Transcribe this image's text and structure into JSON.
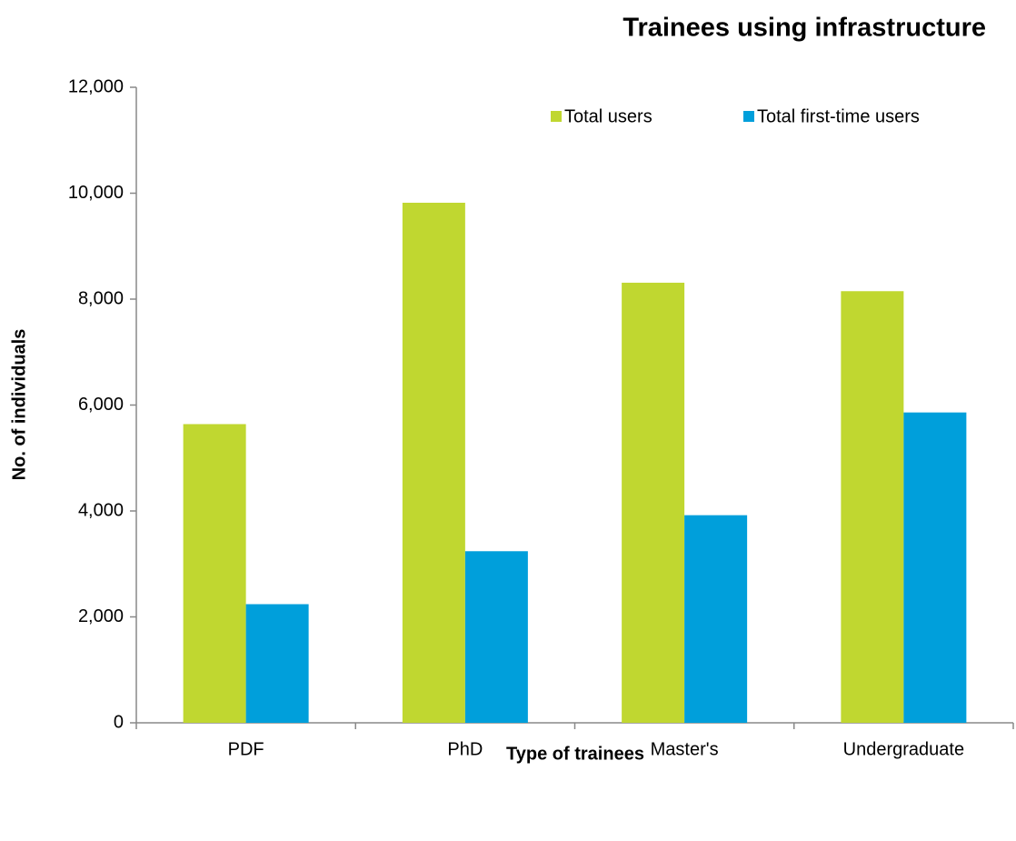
{
  "chart_data": {
    "type": "bar",
    "title": "Trainees using infrastructure",
    "x_label": "Type of trainees",
    "y_label": "No. of individuals",
    "categories": [
      "PDF",
      "PhD",
      "Master's",
      "Undergraduate"
    ],
    "series": [
      {
        "name": "Total users",
        "color": "#c0d730",
        "values": [
          5640,
          9820,
          8310,
          8150
        ]
      },
      {
        "name": "Total first-time users",
        "color": "#009fdb",
        "values": [
          2240,
          3240,
          3920,
          5860
        ]
      }
    ],
    "ylim": [
      0,
      12000
    ],
    "yticks": [
      0,
      {
        "value": 2000,
        "label": "2,000"
      },
      {
        "value": 4000,
        "label": "4,000"
      },
      {
        "value": 6000,
        "label": "6,000"
      },
      {
        "value": 8000,
        "label": "8,000"
      },
      {
        "value": 10000,
        "label": "10,000"
      },
      {
        "value": 12000,
        "label": "12,000"
      }
    ],
    "grid": false
  }
}
